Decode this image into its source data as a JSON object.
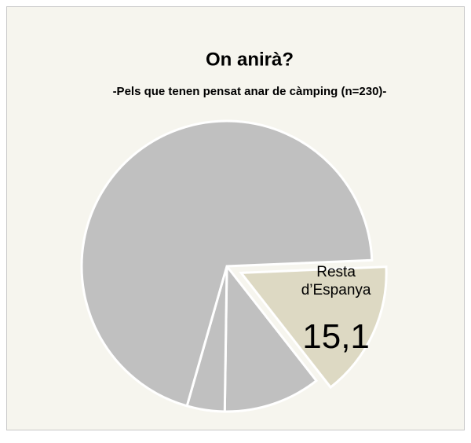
{
  "chart_data": {
    "type": "pie",
    "title": "On anirà?",
    "subtitle": "-Pels que tenen pensat anar de càmping (n=230)-",
    "categories": [
      "Resta d’Espanya",
      null,
      null,
      null
    ],
    "values": [
      15.1,
      10.8,
      4.2,
      69.9
    ],
    "value_labels": [
      "15,1",
      null,
      null,
      null
    ],
    "colors": [
      "#ddd9c3",
      "#c0c0c0",
      "#c0c0c0",
      "#c0c0c0"
    ]
  }
}
